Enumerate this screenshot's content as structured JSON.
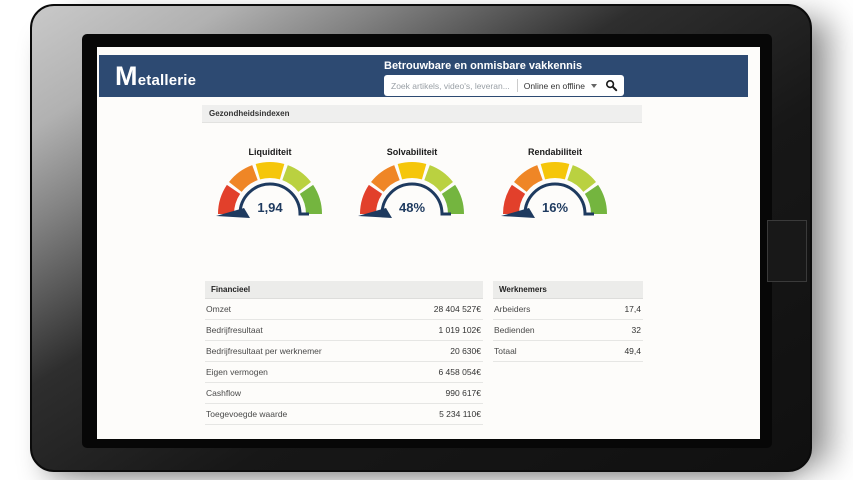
{
  "brand": {
    "logo_initial": "M",
    "logo_rest": "etallerie",
    "tagline": "Betrouwbare en onmisbare vakkennis"
  },
  "search": {
    "placeholder": "Zoek artikels, video's, leveran...",
    "scope_selected": "Online en offline"
  },
  "section_title": "Gezondheidsindexen",
  "chart_data": [
    {
      "type": "gauge",
      "title": "Liquiditeit",
      "value": 1.94,
      "value_label": "1,94",
      "needle_angle_deg": 184
    },
    {
      "type": "gauge",
      "title": "Solvabiliteit",
      "value": 48,
      "value_label": "48%",
      "needle_angle_deg": 184
    },
    {
      "type": "gauge",
      "title": "Rendabiliteit",
      "value": 16,
      "value_label": "16%",
      "needle_angle_deg": 184
    }
  ],
  "gauge_style": {
    "segment_colors": [
      "#e2402b",
      "#ef8626",
      "#f5c60a",
      "#bad140",
      "#74b53f"
    ],
    "needle_color": "#1e3a5f"
  },
  "tables": {
    "financial": {
      "header": "Financieel",
      "rows": [
        {
          "label": "Omzet",
          "value": "28 404 527€"
        },
        {
          "label": "Bedrijfresultaat",
          "value": "1 019 102€"
        },
        {
          "label": "Bedrijfresultaat per werknemer",
          "value": "20 630€"
        },
        {
          "label": "Eigen vermogen",
          "value": "6 458 054€"
        },
        {
          "label": "Cashflow",
          "value": "990 617€"
        },
        {
          "label": "Toegevoegde waarde",
          "value": "5 234 110€"
        }
      ]
    },
    "employees": {
      "header": "Werknemers",
      "rows": [
        {
          "label": "Arbeiders",
          "value": "17,4"
        },
        {
          "label": "Bedienden",
          "value": "32"
        },
        {
          "label": "Totaal",
          "value": "49,4"
        }
      ]
    }
  },
  "colors": {
    "header_bg": "#2d4a72",
    "accent_navy": "#1e3a5f"
  }
}
